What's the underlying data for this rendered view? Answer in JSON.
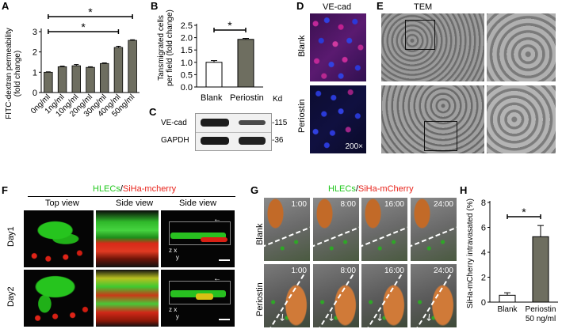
{
  "panels": {
    "A": "A",
    "B": "B",
    "C": "C",
    "D": "D",
    "E": "E",
    "F": "F",
    "G": "G",
    "H": "H"
  },
  "panelA": {
    "ylabel_line1": "FITC-dextran permeability",
    "ylabel_line2": "(fold change)",
    "yticks": [
      "0",
      "1",
      "2",
      "3"
    ],
    "sig": "*"
  },
  "panelB": {
    "ylabel_line1": "Tansmigrated cells",
    "ylabel_line2": "per field (fold change)",
    "yticks": [
      "0.0",
      "0.5",
      "1.0",
      "1.5",
      "2.0",
      "2.5"
    ],
    "sig": "*"
  },
  "panelC": {
    "header_blank": "Blank",
    "header_periostin": "Periostin",
    "header_kd": "Kd",
    "rows": [
      {
        "label": "VE-cad",
        "kd": "-115"
      },
      {
        "label": "GAPDH",
        "kd": "-36"
      }
    ]
  },
  "panelD": {
    "title": "VE-cad",
    "row_blank": "Blank",
    "row_periostin": "Periostin",
    "magnification": "200×"
  },
  "panelE": {
    "title": "TEM"
  },
  "panelF": {
    "legend_green": "HLECs",
    "legend_sep": "/",
    "legend_red": "SiHa-mcherry",
    "col_top": "Top view",
    "col_side1": "Side view",
    "col_side2": "Side view",
    "row_day1": "Day1",
    "row_day2": "Day2",
    "axis_z": "z",
    "axis_x": "x",
    "axis_y": "y"
  },
  "panelG": {
    "legend_green": "HLECs",
    "legend_sep": "/",
    "legend_red": "SiHa-mCherry",
    "row_blank": "Blank",
    "row_periostin": "Periostin",
    "times": [
      "1:00",
      "8:00",
      "16:00",
      "24:00"
    ]
  },
  "panelH": {
    "ylabel": "SiHa-mCherry intravasated (%)",
    "yticks": [
      "0",
      "2",
      "4",
      "6",
      "8"
    ],
    "sig": "*",
    "cat_blank": "Blank",
    "cat_periostin_1": "Periostin",
    "cat_periostin_2": "50 ng/ml"
  },
  "chart_data": [
    {
      "type": "bar",
      "panel": "A",
      "categories": [
        "0ng/ml",
        "1ng/ml",
        "10ng/ml",
        "20ng/ml",
        "30ng/ml",
        "40ng/ml",
        "50ng/ml"
      ],
      "values": [
        1.0,
        1.27,
        1.32,
        1.24,
        1.43,
        2.22,
        2.57
      ],
      "errors": [
        0.02,
        0.03,
        0.06,
        0.03,
        0.03,
        0.06,
        0.03
      ],
      "ylim": [
        0,
        3
      ],
      "comparisons": [
        {
          "from": "0ng/ml",
          "to": "40ng/ml",
          "label": "*"
        },
        {
          "from": "0ng/ml",
          "to": "50ng/ml",
          "label": "*"
        }
      ],
      "color": "#6e6e60"
    },
    {
      "type": "bar",
      "panel": "B",
      "categories": [
        "Blank",
        "Periostin"
      ],
      "values": [
        1.0,
        1.93
      ],
      "errors": [
        0.07,
        0.04
      ],
      "ylim": [
        0,
        2.5
      ],
      "colors": [
        "#ffffff",
        "#6e6e60"
      ]
    },
    {
      "type": "bar",
      "panel": "H",
      "categories": [
        "Blank",
        "Periostin 50 ng/ml"
      ],
      "values": [
        0.55,
        5.25
      ],
      "errors": [
        0.2,
        0.9
      ],
      "ylim": [
        0,
        8
      ],
      "colors": [
        "#ffffff",
        "#6e6e60"
      ]
    }
  ]
}
